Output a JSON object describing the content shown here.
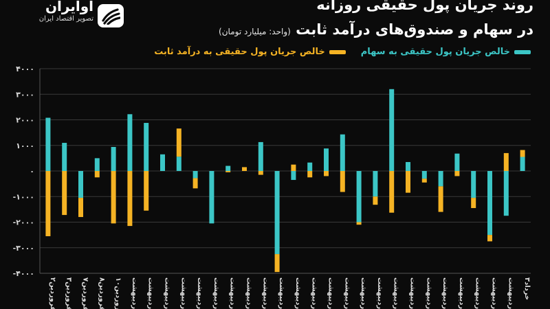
{
  "brand": {
    "name": "آوایران",
    "tagline": "تصویر اقتصاد ایران"
  },
  "colors": {
    "stocks": "#3cc6c6",
    "fixed_income": "#f5b324",
    "grid": "#3a3a3a",
    "axis_text": "#dddddd",
    "background": "#0b0b0b"
  },
  "chart_data": {
    "type": "bar",
    "stacked": true,
    "title": "روند جریان پول حقیقی روزانه",
    "subtitle": "در سهام و صندوق‌های درآمد ثابت",
    "unit": "(واحد: میلیارد تومان)",
    "ylim": [
      -4000,
      4000
    ],
    "yticks": [
      "-۴۰۰۰",
      "-۳۰۰۰",
      "-۲۰۰۰",
      "-۱۰۰۰",
      "۰",
      "۱۰۰۰",
      "۲۰۰۰",
      "۳۰۰۰",
      "۴۰۰۰"
    ],
    "ytick_values": [
      -4000,
      -3000,
      -2000,
      -1000,
      0,
      1000,
      2000,
      3000,
      4000
    ],
    "grid": true,
    "legend_position": "top-right",
    "categories": [
      "فروردین۲",
      "فروردین۳",
      "فروردین۷",
      "فروردین۸",
      "فروردین۱۰",
      "اردیبهشت",
      "اردیبهشت",
      "اردیبهشت",
      "اردیبهشت",
      "اردیبهشت",
      "اردیبهشت",
      "اردیبهشت",
      "اردیبهشت",
      "اردیبهشت",
      "اردیبهشت",
      "اردیبهشت",
      "اردیبهشت",
      "اردیبهشت",
      "اردیبهشت",
      "اردیبهشت",
      "اردیبهشت",
      "اردیبهشت",
      "اردیبهشت",
      "اردیبهشت",
      "اردیبهشت",
      "اردیبهشت",
      "اردیبهشت",
      "اردیبهشت",
      "اردیبهشت",
      "خرداد۳"
    ],
    "series": [
      {
        "name": "خالص جریان پول حقیقی به سهام",
        "values": [
          2080,
          1100,
          -1050,
          500,
          940,
          2220,
          1880,
          650,
          560,
          -280,
          -2050,
          200,
          0,
          1130,
          -3250,
          -350,
          330,
          880,
          1430,
          -2000,
          -1000,
          3200,
          350,
          -300,
          -600,
          680,
          -1050,
          -2500,
          -1750,
          550
        ]
      },
      {
        "name": "خالص جریان پول حقیقی به درآمد ثابت",
        "values": [
          -2550,
          -1720,
          -750,
          -250,
          -2050,
          -2150,
          -1550,
          0,
          1100,
          -400,
          0,
          -50,
          150,
          -150,
          -700,
          250,
          -250,
          -200,
          -820,
          -100,
          -320,
          -1630,
          -850,
          -150,
          -1000,
          -200,
          -400,
          -250,
          700,
          270
        ]
      }
    ]
  }
}
